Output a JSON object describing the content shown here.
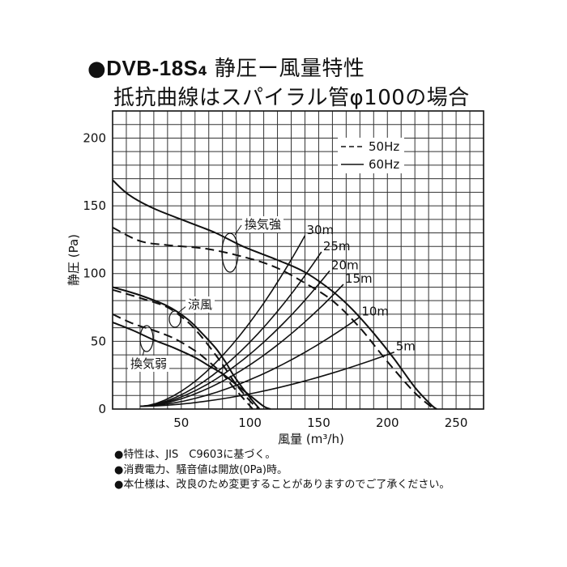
{
  "title": {
    "bullet": "●",
    "model": "DVB-18S",
    "model_subscript": "4",
    "subtitle": "静圧ー風量特性",
    "line2": "抵抗曲線はスパイラル管φ100の場合"
  },
  "notes": [
    "●特性は、JIS　C9603に基づく。",
    "●消費電力、騒音値は開放(0Pa)時。",
    "●本仕様は、改良のため変更することがありますのでご了承ください。"
  ],
  "chart_data": {
    "type": "line",
    "xlabel": "風量 (m³/h)",
    "ylabel": "静圧 (Pa)",
    "xlim": [
      0,
      270
    ],
    "ylim": [
      0,
      220
    ],
    "xticks": [
      "50",
      "100",
      "150",
      "200",
      "250"
    ],
    "yticks": [
      "0",
      "50",
      "100",
      "150",
      "200"
    ],
    "grid": true,
    "legend_position": "top-right",
    "legend": [
      {
        "label": "50Hz",
        "style": "dashed"
      },
      {
        "label": "60Hz",
        "style": "solid"
      }
    ],
    "fan_curves": [
      {
        "mode": "換気強",
        "freq": "60Hz",
        "style": "solid",
        "points": [
          [
            0,
            169
          ],
          [
            12,
            158
          ],
          [
            30,
            148
          ],
          [
            55,
            138
          ],
          [
            75,
            130
          ],
          [
            95,
            120
          ],
          [
            120,
            110
          ],
          [
            140,
            101
          ],
          [
            160,
            87
          ],
          [
            175,
            73
          ],
          [
            190,
            56
          ],
          [
            205,
            37
          ],
          [
            220,
            16
          ],
          [
            232,
            3
          ],
          [
            236,
            0
          ]
        ]
      },
      {
        "mode": "換気強",
        "freq": "50Hz",
        "style": "dashed",
        "points": [
          [
            0,
            134
          ],
          [
            20,
            124
          ],
          [
            40,
            121
          ],
          [
            70,
            118
          ],
          [
            100,
            111
          ],
          [
            120,
            104
          ],
          [
            140,
            93
          ],
          [
            160,
            80
          ],
          [
            180,
            60
          ],
          [
            200,
            35
          ],
          [
            220,
            12
          ],
          [
            234,
            0
          ]
        ]
      },
      {
        "mode": "涼風",
        "freq": "60Hz",
        "style": "solid",
        "points": [
          [
            0,
            90
          ],
          [
            20,
            84
          ],
          [
            40,
            76
          ],
          [
            55,
            66
          ],
          [
            65,
            56
          ],
          [
            75,
            45
          ],
          [
            82,
            35
          ],
          [
            88,
            25
          ],
          [
            95,
            15
          ],
          [
            102,
            6
          ],
          [
            107,
            0
          ]
        ]
      },
      {
        "mode": "涼風",
        "freq": "50Hz",
        "style": "dashed",
        "points": [
          [
            0,
            88
          ],
          [
            20,
            82
          ],
          [
            40,
            75
          ],
          [
            55,
            64
          ],
          [
            65,
            53
          ],
          [
            75,
            40
          ],
          [
            82,
            30
          ],
          [
            90,
            18
          ],
          [
            100,
            6
          ],
          [
            106,
            0
          ]
        ]
      },
      {
        "mode": "換気弱",
        "freq": "60Hz",
        "style": "solid",
        "points": [
          [
            0,
            64
          ],
          [
            15,
            58
          ],
          [
            30,
            51
          ],
          [
            45,
            45
          ],
          [
            60,
            38
          ],
          [
            70,
            32
          ],
          [
            80,
            26
          ],
          [
            90,
            18
          ],
          [
            100,
            10
          ],
          [
            110,
            2
          ],
          [
            115,
            0
          ]
        ]
      },
      {
        "mode": "換気弱",
        "freq": "50Hz",
        "style": "dashed",
        "points": [
          [
            0,
            70
          ],
          [
            15,
            63
          ],
          [
            30,
            58
          ],
          [
            45,
            52
          ],
          [
            60,
            43
          ],
          [
            70,
            35
          ],
          [
            80,
            26
          ],
          [
            88,
            16
          ],
          [
            95,
            8
          ],
          [
            102,
            0
          ]
        ]
      }
    ],
    "resistance_curves": [
      {
        "label": "30m",
        "end": [
          140,
          128
        ]
      },
      {
        "label": "25m",
        "end": [
          152,
          116
        ]
      },
      {
        "label": "20m",
        "end": [
          158,
          102
        ]
      },
      {
        "label": "15m",
        "end": [
          168,
          92
        ]
      },
      {
        "label": "10m",
        "end": [
          180,
          68
        ]
      },
      {
        "label": "5m",
        "end": [
          205,
          42
        ]
      }
    ],
    "annotations": [
      {
        "text": "換気強",
        "mode": "換気強"
      },
      {
        "text": "涼風",
        "mode": "涼風"
      },
      {
        "text": "換気弱",
        "mode": "換気弱"
      }
    ]
  }
}
